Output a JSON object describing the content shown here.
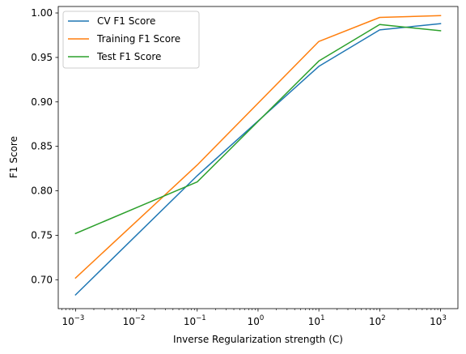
{
  "chart_data": {
    "type": "line",
    "title": "",
    "xlabel": "Inverse Regularization strength (C)",
    "ylabel": "F1 Score",
    "xscale": "log",
    "x": [
      0.001,
      0.1,
      10,
      100,
      1000
    ],
    "x_tick_values": [
      0.001,
      0.01,
      0.1,
      1,
      10,
      100,
      1000
    ],
    "x_tick_labels": [
      {
        "base": "10",
        "exp": "−3"
      },
      {
        "base": "10",
        "exp": "−2"
      },
      {
        "base": "10",
        "exp": "−1"
      },
      {
        "base": "10",
        "exp": "0"
      },
      {
        "base": "10",
        "exp": "1"
      },
      {
        "base": "10",
        "exp": "2"
      },
      {
        "base": "10",
        "exp": "3"
      }
    ],
    "y_ticks": [
      0.7,
      0.75,
      0.8,
      0.85,
      0.9,
      0.95,
      1.0
    ],
    "y_tick_labels": [
      "0.70",
      "0.75",
      "0.80",
      "0.85",
      "0.90",
      "0.95",
      "1.00"
    ],
    "xlim": [
      0.00052,
      1930
    ],
    "ylim": [
      0.6675,
      1.0073
    ],
    "grid": false,
    "legend_position": "top-left",
    "series": [
      {
        "name": "CV F1 Score",
        "color": "#1f77b4",
        "values": [
          0.683,
          0.817,
          0.94,
          0.981,
          0.988
        ]
      },
      {
        "name": "Training F1 Score",
        "color": "#ff7f0e",
        "values": [
          0.702,
          0.829,
          0.968,
          0.995,
          0.997
        ]
      },
      {
        "name": "Test F1 Score",
        "color": "#2ca02c",
        "values": [
          0.752,
          0.81,
          0.946,
          0.987,
          0.98
        ]
      }
    ]
  }
}
